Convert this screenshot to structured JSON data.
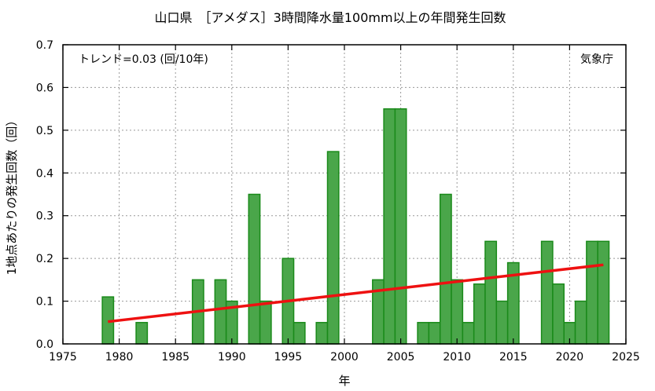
{
  "chart_data": {
    "type": "bar",
    "title": "山口県　［アメダス］3時間降水量100mm以上の年間発生回数",
    "xlabel": "年",
    "ylabel": "1地点あたりの発生回数（回）",
    "xlim": [
      1975,
      2025
    ],
    "ylim": [
      0,
      0.7
    ],
    "x_ticks": [
      1975,
      1980,
      1985,
      1990,
      1995,
      2000,
      2005,
      2010,
      2015,
      2020,
      2025
    ],
    "y_ticks": [
      0,
      0.1,
      0.2,
      0.3,
      0.4,
      0.5,
      0.6,
      0.7
    ],
    "x_tick_labels": [
      "1975",
      "1980",
      "1985",
      "1990",
      "1995",
      "2000",
      "2005",
      "2010",
      "2015",
      "2020",
      "2025"
    ],
    "y_tick_labels": [
      "0.0",
      "0.1",
      "0.2",
      "0.3",
      "0.4",
      "0.5",
      "0.6",
      "0.7"
    ],
    "grid": true,
    "bar_color": "#4aa64a",
    "bar_edge_color": "#1a8a1a",
    "trend_color": "#ee1111",
    "series": [
      {
        "type": "bar",
        "x": [
          1976,
          1977,
          1978,
          1979,
          1980,
          1981,
          1982,
          1983,
          1984,
          1985,
          1986,
          1987,
          1988,
          1989,
          1990,
          1991,
          1992,
          1993,
          1994,
          1995,
          1996,
          1997,
          1998,
          1999,
          2000,
          2001,
          2002,
          2003,
          2004,
          2005,
          2006,
          2007,
          2008,
          2009,
          2010,
          2011,
          2012,
          2013,
          2014,
          2015,
          2016,
          2017,
          2018,
          2019,
          2020,
          2021,
          2022,
          2023
        ],
        "values": [
          0,
          0,
          0,
          0.11,
          0,
          0,
          0.05,
          0,
          0,
          0,
          0,
          0.15,
          0,
          0.15,
          0.1,
          0,
          0.35,
          0.1,
          0,
          0.2,
          0.05,
          0,
          0.05,
          0.45,
          0,
          0,
          0,
          0.15,
          0.55,
          0.55,
          0,
          0.05,
          0.05,
          0.35,
          0.15,
          0.05,
          0.14,
          0.24,
          0.1,
          0.19,
          0,
          0,
          0.24,
          0.14,
          0.05,
          0.1,
          0.24,
          0.24
        ]
      },
      {
        "type": "line",
        "x": [
          1979,
          2023
        ],
        "values": [
          0.052,
          0.185
        ]
      }
    ],
    "annotations": {
      "trend_text": "トレンド=0.03 (回/10年)",
      "source": "気象庁"
    }
  }
}
